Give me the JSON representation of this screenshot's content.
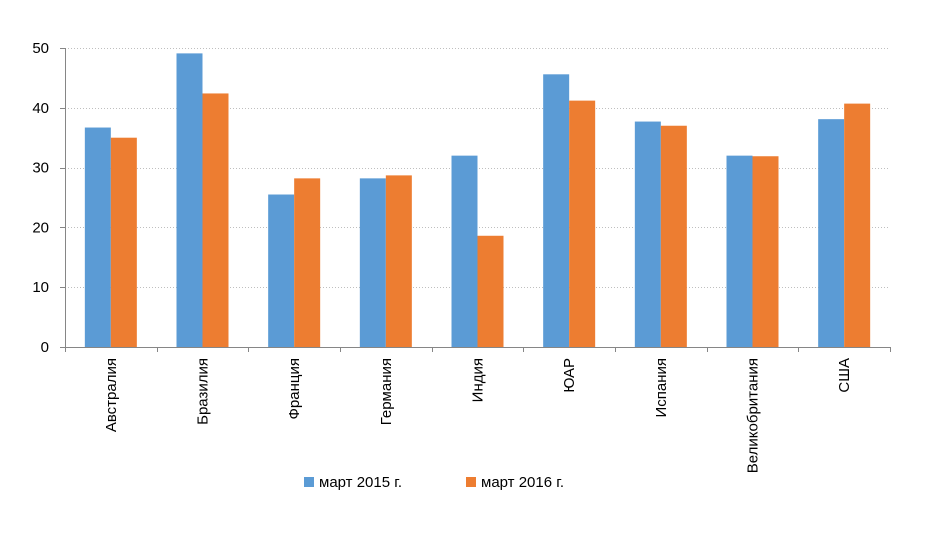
{
  "chart_data": {
    "type": "bar",
    "categories": [
      "Австралия",
      "Бразилия",
      "Франция",
      "Германия",
      "Индия",
      "ЮАР",
      "Испания",
      "Великобритания",
      "США"
    ],
    "series": [
      {
        "name": "март 2015 г.",
        "color": "#5b9bd5",
        "values": [
          36.7,
          49.1,
          25.5,
          28.2,
          32.0,
          45.6,
          37.7,
          32.0,
          38.1
        ]
      },
      {
        "name": "март 2016 г.",
        "color": "#ed7d31",
        "values": [
          35.0,
          42.4,
          28.2,
          28.7,
          18.6,
          41.2,
          37.0,
          31.9,
          40.7
        ]
      }
    ],
    "ylim": [
      0,
      50
    ],
    "yticks": [
      0,
      10,
      20,
      30,
      40,
      50
    ],
    "grid": true,
    "legend": "bottom"
  }
}
